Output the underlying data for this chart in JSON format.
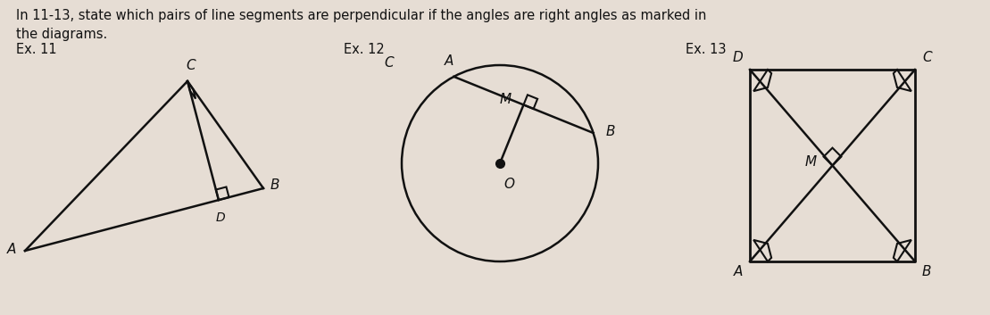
{
  "bg_color": "#e6ddd4",
  "text_color": "#111111",
  "title_line1": "In 11-13, state which pairs of line segments are perpendicular if the angles are right angles as marked in",
  "title_line2": "the diagrams.",
  "ex11_label": "Ex. 11",
  "ex12_label": "Ex. 12",
  "ex13_label": "Ex. 13",
  "line_color": "#111111"
}
